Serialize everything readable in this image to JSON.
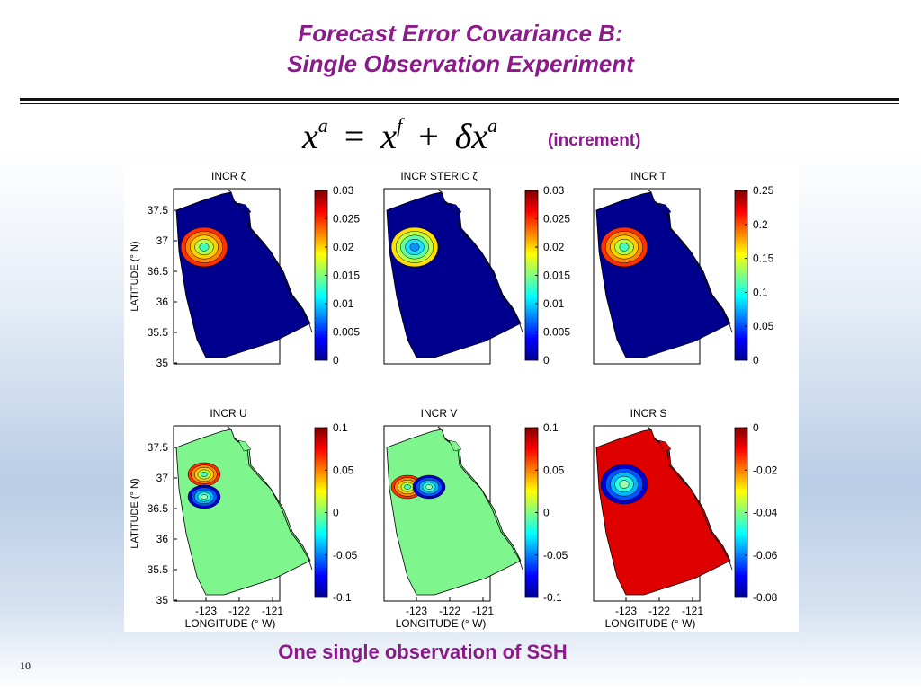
{
  "slide": {
    "title_line1": "Forecast Error Covariance B:",
    "title_line2": "Single Observation Experiment",
    "equation": {
      "x": "x",
      "a": "a",
      "f": "f",
      "eq": "=",
      "plus": "+",
      "delta": "δ"
    },
    "equation_note": "(increment)",
    "caption": "One single observation of SSH",
    "page_number": "10"
  },
  "colors": {
    "title": "#8b1a8b",
    "land_fill": "#ffffff"
  },
  "axes": {
    "ylabel": "LATITUDE (° N)",
    "xlabel": "LONGITUDE (° W)",
    "lat_ticks": [
      "37.5",
      "37",
      "36.5",
      "36",
      "35.5",
      "35"
    ],
    "lon_ticks": [
      "-123",
      "-122",
      "-121"
    ]
  },
  "panels": [
    {
      "title": "INCR ζ",
      "field_color": "#00008f",
      "colorbar_ticks": [
        "0.03",
        "0.025",
        "0.02",
        "0.015",
        "0.01",
        "0.005",
        "0"
      ],
      "blobs": [
        {
          "type": "warm",
          "pos": "center"
        }
      ]
    },
    {
      "title": "INCR STERIC ζ",
      "field_color": "#00008f",
      "colorbar_ticks": [
        "0.03",
        "0.025",
        "0.02",
        "0.015",
        "0.01",
        "0.005",
        "0"
      ],
      "blobs": [
        {
          "type": "mid",
          "pos": "center"
        }
      ]
    },
    {
      "title": "INCR T",
      "field_color": "#00008f",
      "colorbar_ticks": [
        "0.25",
        "0.2",
        "0.15",
        "0.1",
        "0.05",
        "0"
      ],
      "blobs": [
        {
          "type": "warm",
          "pos": "center"
        }
      ]
    },
    {
      "title": "INCR  U",
      "field_color": "#7ff58e",
      "colorbar_ticks": [
        "0.1",
        "0.05",
        "0",
        "-0.05",
        "-0.1"
      ],
      "blobs": [
        {
          "type": "warm",
          "pos": "north"
        },
        {
          "type": "cold",
          "pos": "south"
        }
      ]
    },
    {
      "title": "INCR V",
      "field_color": "#7ff58e",
      "colorbar_ticks": [
        "0.1",
        "0.05",
        "0",
        "-0.05",
        "-0.1"
      ],
      "blobs": [
        {
          "type": "warm",
          "pos": "west"
        },
        {
          "type": "cold",
          "pos": "east"
        }
      ]
    },
    {
      "title": "INCR S",
      "field_color": "#df0000",
      "colorbar_ticks": [
        "0",
        "-0.02",
        "-0.04",
        "-0.06",
        "-0.08"
      ],
      "blobs": [
        {
          "type": "cold",
          "pos": "center"
        }
      ]
    }
  ]
}
